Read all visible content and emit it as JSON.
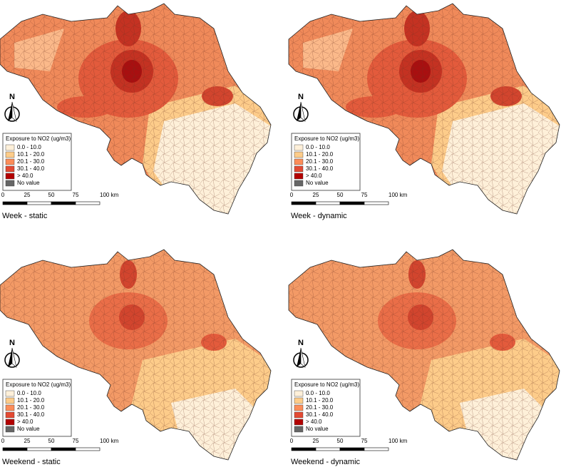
{
  "panels": [
    {
      "title": "Week - static"
    },
    {
      "title": "Week - dynamic"
    },
    {
      "title": "Weekend - static"
    },
    {
      "title": "Weekend - dynamic"
    }
  ],
  "north": "N",
  "legend": {
    "title": "Exposure to NO2 (ug/m3)",
    "items": [
      "0.0 - 10.0",
      "10.1 - 20.0",
      "20.1 - 30.0",
      "30.1 - 40.0",
      "> 40.0",
      "No value"
    ]
  },
  "scale": {
    "labels": [
      "0",
      "25",
      "50",
      "75",
      "100 km"
    ]
  }
}
